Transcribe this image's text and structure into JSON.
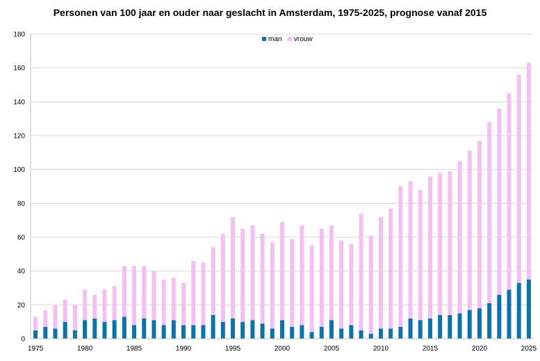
{
  "chart_data": {
    "type": "bar",
    "stacked": true,
    "title": "Personen van 100 jaar en ouder naar geslacht in Amsterdam, 1975-2025, prognose vanaf 2015",
    "xlabel": "",
    "ylabel": "",
    "ylim": [
      0,
      180
    ],
    "yticks": [
      0,
      20,
      40,
      60,
      80,
      100,
      120,
      140,
      160,
      180
    ],
    "xtick_labels": [
      "1975",
      "1980",
      "1985",
      "1990",
      "1995",
      "2000",
      "2005",
      "2010",
      "2015",
      "2020",
      "2025"
    ],
    "legend_position": "top-center",
    "grid": true,
    "categories": [
      1975,
      1976,
      1977,
      1978,
      1979,
      1980,
      1981,
      1982,
      1983,
      1984,
      1985,
      1986,
      1987,
      1988,
      1989,
      1990,
      1991,
      1992,
      1993,
      1994,
      1995,
      1996,
      1997,
      1998,
      1999,
      2000,
      2001,
      2002,
      2003,
      2004,
      2005,
      2006,
      2007,
      2008,
      2009,
      2010,
      2011,
      2012,
      2013,
      2014,
      2015,
      2016,
      2017,
      2018,
      2019,
      2020,
      2021,
      2022,
      2023,
      2024,
      2025
    ],
    "series": [
      {
        "name": "man",
        "color": "#0e71a7",
        "values": [
          5,
          7,
          6,
          10,
          5,
          11,
          12,
          10,
          11,
          13,
          8,
          12,
          11,
          8,
          11,
          8,
          8,
          8,
          14,
          10,
          12,
          10,
          11,
          9,
          6,
          11,
          7,
          8,
          4,
          7,
          11,
          6,
          8,
          5,
          3,
          6,
          6,
          7,
          12,
          11,
          12,
          14,
          14,
          15,
          17,
          18,
          21,
          26,
          29,
          33,
          35
        ]
      },
      {
        "name": "vrouw",
        "color": "#f3c1f1",
        "values": [
          8,
          10,
          14,
          13,
          15,
          18,
          14,
          19,
          20,
          30,
          35,
          31,
          29,
          27,
          25,
          25,
          38,
          37,
          40,
          52,
          60,
          55,
          56,
          53,
          51,
          58,
          52,
          59,
          51,
          58,
          56,
          52,
          48,
          69,
          58,
          66,
          71,
          83,
          81,
          77,
          84,
          84,
          85,
          90,
          94,
          99,
          107,
          110,
          116,
          123,
          128
        ]
      }
    ]
  }
}
